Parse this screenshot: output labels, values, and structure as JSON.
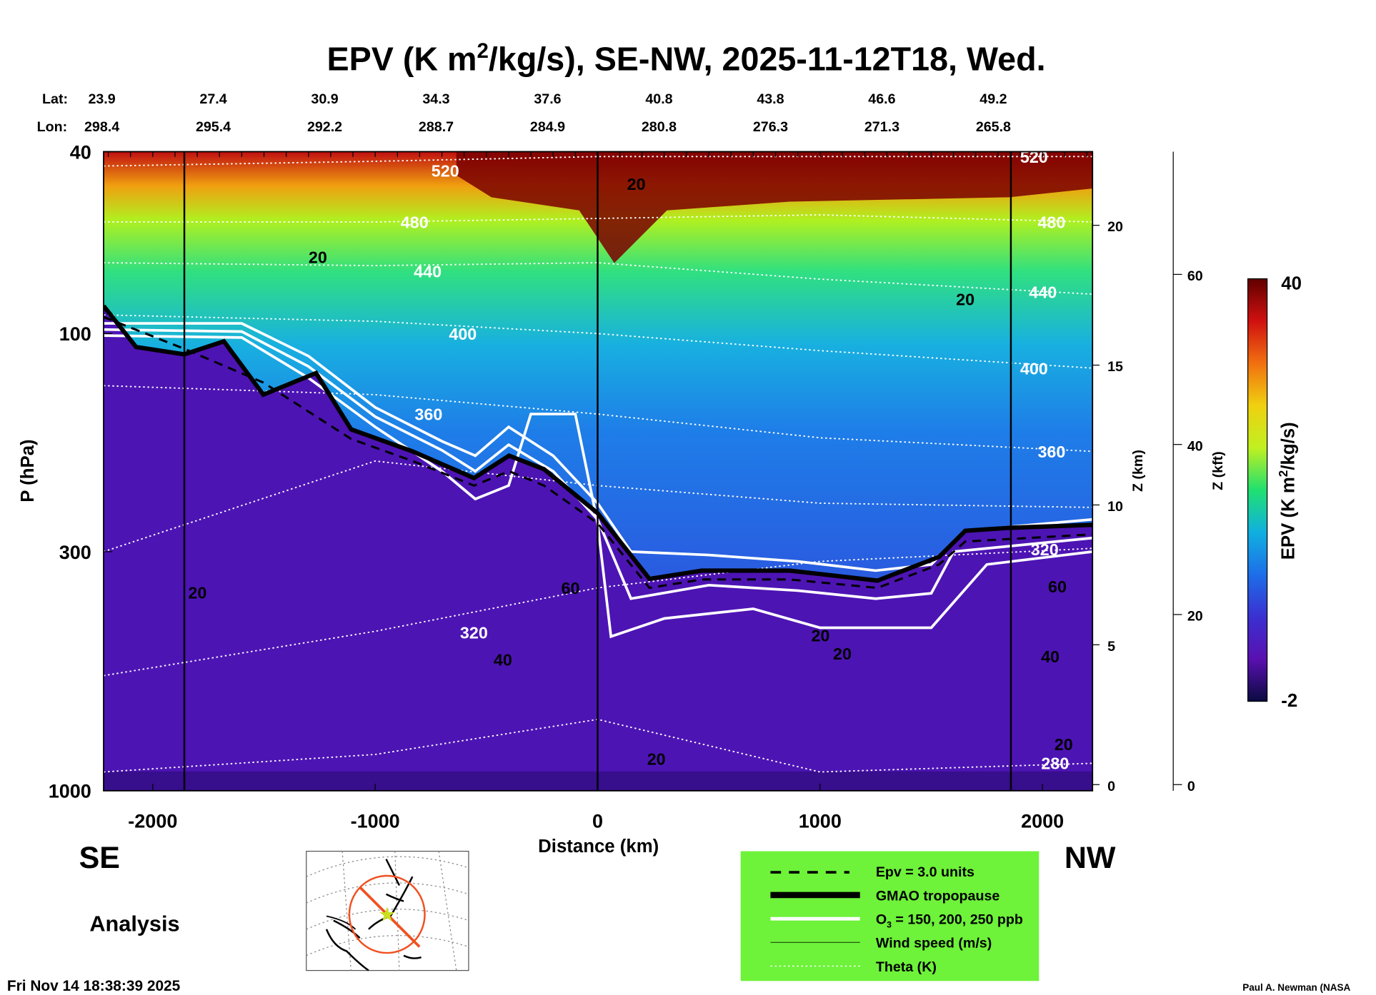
{
  "chart_data": {
    "type": "heatmap",
    "title": "EPV (K m²/kg/s), SE-NW, 2025-11-12T18, Wed.",
    "title_parts": {
      "pre": "EPV (K m",
      "sup": "2",
      "post": "/kg/s), SE-NW, 2025-11-12T18, Wed."
    },
    "xlabel": "Distance (km)",
    "ylabel": "P (hPa)",
    "y2label": "Z (km)",
    "y3label": "Z (kft)",
    "xlim": [
      -2221,
      2225
    ],
    "ylim": [
      1000,
      40
    ],
    "yscale": "log",
    "xticks": [
      -2000,
      -1000,
      0,
      1000,
      2000
    ],
    "xtick_labels": [
      "-2000",
      "-1000",
      "0",
      "1000",
      "2000"
    ],
    "yticks": [
      40,
      100,
      300,
      1000
    ],
    "ytick_labels": [
      "40",
      "100",
      "300",
      "1000"
    ],
    "z_km_ticks": [
      0,
      5,
      10,
      15,
      20
    ],
    "z_km_labels": [
      "0",
      "5",
      "10",
      "15",
      "20"
    ],
    "z_kft_ticks": [
      0,
      20,
      40,
      60
    ],
    "z_kft_labels": [
      "0",
      "20",
      "40",
      "60"
    ],
    "lat_label": "Lat:",
    "lon_label": "Lon:",
    "lat": [
      "23.9",
      "27.4",
      "30.9",
      "34.3",
      "37.6",
      "40.8",
      "43.8",
      "46.6",
      "49.2"
    ],
    "lon": [
      "298.4",
      "295.4",
      "292.2",
      "288.7",
      "284.9",
      "280.8",
      "276.3",
      "271.3",
      "265.8"
    ],
    "vertical_lines_km": [
      -1858,
      0,
      1858
    ],
    "colorbar": {
      "label": "EPV (K m²/kg/s)",
      "label_pre": "EPV (K m",
      "label_sup": "2",
      "label_post": "/kg/s)",
      "min": -2,
      "max": 40,
      "min_label": "-2",
      "max_label": "40",
      "colors": [
        "#0a0a40",
        "#5a10b0",
        "#3a30d0",
        "#1e6ee8",
        "#10b0e0",
        "#20e070",
        "#c0f020",
        "#f0d010",
        "#f07010",
        "#d01010",
        "#600000"
      ]
    },
    "tropopause": [
      [
        -2221,
        87
      ],
      [
        -2075,
        107
      ],
      [
        -1858,
        111
      ],
      [
        -1680,
        104
      ],
      [
        -1503,
        136
      ],
      [
        -1266,
        122
      ],
      [
        -1108,
        162
      ],
      [
        -832,
        181
      ],
      [
        -556,
        207
      ],
      [
        -398,
        185
      ],
      [
        -241,
        198
      ],
      [
        0,
        247
      ],
      [
        233,
        344
      ],
      [
        469,
        330
      ],
      [
        864,
        330
      ],
      [
        1258,
        347
      ],
      [
        1535,
        308
      ],
      [
        1653,
        270
      ],
      [
        1850,
        266
      ],
      [
        2225,
        262
      ]
    ],
    "epv_3_units": [
      [
        -2221,
        92
      ],
      [
        -1858,
        108
      ],
      [
        -1503,
        128
      ],
      [
        -1108,
        170
      ],
      [
        -832,
        190
      ],
      [
        -556,
        215
      ],
      [
        -398,
        200
      ],
      [
        -241,
        215
      ],
      [
        0,
        260
      ],
      [
        233,
        360
      ],
      [
        469,
        345
      ],
      [
        864,
        345
      ],
      [
        1258,
        360
      ],
      [
        1535,
        320
      ],
      [
        1653,
        285
      ],
      [
        2225,
        275
      ]
    ],
    "o3_contours": [
      {
        "ppb": 150,
        "points": [
          [
            -2221,
            95
          ],
          [
            -1600,
            95
          ],
          [
            -1300,
            112
          ],
          [
            -1000,
            145
          ],
          [
            -700,
            172
          ],
          [
            -550,
            185
          ],
          [
            -400,
            160
          ],
          [
            -200,
            185
          ],
          [
            0,
            235
          ],
          [
            150,
            300
          ],
          [
            500,
            305
          ],
          [
            900,
            315
          ],
          [
            1250,
            330
          ],
          [
            1500,
            320
          ],
          [
            1650,
            270
          ],
          [
            2225,
            255
          ]
        ]
      },
      {
        "ppb": 200,
        "points": [
          [
            -2221,
            98
          ],
          [
            -1600,
            99
          ],
          [
            -1300,
            118
          ],
          [
            -1000,
            152
          ],
          [
            -700,
            180
          ],
          [
            -550,
            200
          ],
          [
            -400,
            175
          ],
          [
            -200,
            200
          ],
          [
            0,
            255
          ],
          [
            150,
            380
          ],
          [
            500,
            355
          ],
          [
            900,
            365
          ],
          [
            1250,
            380
          ],
          [
            1500,
            370
          ],
          [
            1600,
            300
          ],
          [
            2225,
            280
          ]
        ]
      },
      {
        "ppb": 250,
        "points": [
          [
            -2221,
            101
          ],
          [
            -1600,
            102
          ],
          [
            -1300,
            125
          ],
          [
            -1000,
            160
          ],
          [
            -700,
            200
          ],
          [
            -550,
            230
          ],
          [
            -400,
            215
          ],
          [
            -300,
            150
          ],
          [
            -100,
            150
          ],
          [
            0,
            260
          ],
          [
            60,
            460
          ],
          [
            300,
            420
          ],
          [
            700,
            400
          ],
          [
            1000,
            440
          ],
          [
            1500,
            440
          ],
          [
            1750,
            320
          ],
          [
            2225,
            300
          ]
        ]
      }
    ],
    "theta_lines": [
      {
        "level": "520",
        "points": [
          [
            -2221,
            43
          ],
          [
            -1000,
            42
          ],
          [
            0,
            41
          ],
          [
            1000,
            41
          ],
          [
            2225,
            41
          ]
        ]
      },
      {
        "level": "480",
        "points": [
          [
            -2221,
            57
          ],
          [
            -1000,
            57
          ],
          [
            0,
            56
          ],
          [
            1000,
            55
          ],
          [
            2225,
            57
          ]
        ]
      },
      {
        "level": "440",
        "points": [
          [
            -2221,
            70
          ],
          [
            -1000,
            71
          ],
          [
            0,
            70
          ],
          [
            1000,
            76
          ],
          [
            2225,
            82
          ]
        ]
      },
      {
        "level": "400",
        "points": [
          [
            -2221,
            91
          ],
          [
            -1000,
            94
          ],
          [
            0,
            100
          ],
          [
            1000,
            109
          ],
          [
            2225,
            119
          ]
        ]
      },
      {
        "level": "360",
        "points": [
          [
            -2221,
            130
          ],
          [
            -1000,
            136
          ],
          [
            0,
            150
          ],
          [
            1000,
            169
          ],
          [
            2225,
            181
          ]
        ]
      },
      {
        "level": "340",
        "points": [
          [
            -2221,
            300
          ],
          [
            -1000,
            190
          ],
          [
            0,
            215
          ],
          [
            1000,
            235
          ],
          [
            2225,
            240
          ]
        ]
      },
      {
        "level": "320",
        "points": [
          [
            -2221,
            560
          ],
          [
            -1000,
            448
          ],
          [
            0,
            360
          ],
          [
            1000,
            315
          ],
          [
            2225,
            295
          ]
        ]
      },
      {
        "level": "280",
        "points": [
          [
            -2221,
            910
          ],
          [
            -1000,
            833
          ],
          [
            0,
            698
          ],
          [
            1000,
            910
          ],
          [
            2225,
            871
          ]
        ]
      }
    ],
    "theta_labels": [
      {
        "text": "520",
        "km": -685,
        "p": 44
      },
      {
        "text": "520",
        "km": 1962,
        "p": 41
      },
      {
        "text": "480",
        "km": -823,
        "p": 57
      },
      {
        "text": "480",
        "km": 2041,
        "p": 57
      },
      {
        "text": "440",
        "km": -764,
        "p": 73
      },
      {
        "text": "440",
        "km": 2002,
        "p": 81
      },
      {
        "text": "400",
        "km": -606,
        "p": 100
      },
      {
        "text": "400",
        "km": 1962,
        "p": 119
      },
      {
        "text": "360",
        "km": -760,
        "p": 150
      },
      {
        "text": "360",
        "km": 2041,
        "p": 181
      },
      {
        "text": "320",
        "km": -556,
        "p": 450
      },
      {
        "text": "320",
        "km": 2010,
        "p": 296
      },
      {
        "text": "280",
        "km": 2057,
        "p": 870
      }
    ],
    "wind_labels": [
      {
        "text": "20",
        "km": -1258,
        "p": 68
      },
      {
        "text": "20",
        "km": 174,
        "p": 47
      },
      {
        "text": "20",
        "km": 1653,
        "p": 84
      },
      {
        "text": "20",
        "km": -1799,
        "p": 368
      },
      {
        "text": "20",
        "km": 1002,
        "p": 457
      },
      {
        "text": "20",
        "km": 1100,
        "p": 501
      },
      {
        "text": "20",
        "km": 264,
        "p": 851
      },
      {
        "text": "20",
        "km": 2095,
        "p": 791
      },
      {
        "text": "60",
        "km": -122,
        "p": 360
      },
      {
        "text": "60",
        "km": 2067,
        "p": 357
      },
      {
        "text": "40",
        "km": -426,
        "p": 516
      },
      {
        "text": "40",
        "km": 2035,
        "p": 508
      }
    ],
    "legend": {
      "placement": "bottom-right",
      "background": "#6ef23a",
      "entries": [
        "Epv = 3.0 units",
        "GMAO tropopause",
        "O₃ = 150, 200, 250 ppb",
        "Wind speed (m/s)",
        "Theta (K)"
      ],
      "o3_pre": "O",
      "o3_sub": "3",
      "o3_post": " = 150, 200, 250 ppb"
    }
  },
  "labels": {
    "se": "SE",
    "nw": "NW",
    "analysis": "Analysis",
    "timestamp": "Fri Nov 14 18:38:39 2025",
    "credit": "Paul A. Newman (NASA"
  }
}
